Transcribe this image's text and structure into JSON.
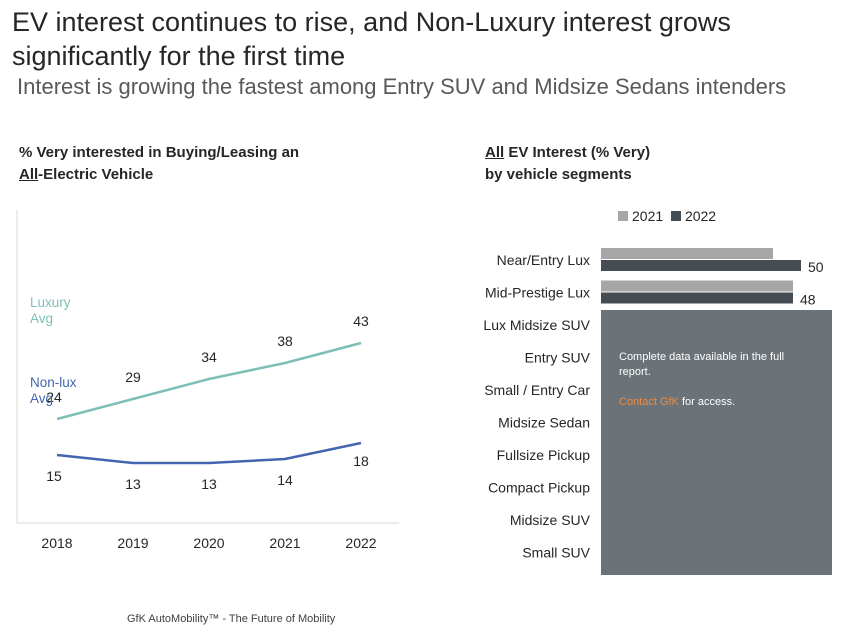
{
  "slide": {
    "title": "EV interest continues to rise, and Non-Luxury interest grows significantly for the first time",
    "subtitle": "Interest is growing the fastest among Entry SUV and Midsize Sedans intenders",
    "footer": "GfK AutoMobility™ - The Future of Mobility"
  },
  "left_panel": {
    "heading_line1": "% Very interested in Buying/Leasing an",
    "heading_line2_underlined": "All",
    "heading_line2_rest": "-Electric Vehicle"
  },
  "right_panel": {
    "heading_line1_underlined": "All",
    "heading_line1_rest": " EV Interest (% Very)",
    "heading_line2": "by vehicle segments",
    "legend": {
      "label_2021": "2021",
      "label_2022": "2022"
    }
  },
  "overlay": {
    "text": "Complete data available in the full report.",
    "contact_link": "Contact GfK",
    "contact_rest": " for access."
  },
  "colors": {
    "luxury": "#7dbfb7",
    "nonlux": "#4365b0",
    "bar_2021": "#a6a6a6",
    "bar_2022": "#464c53",
    "overlay": "#6b7378",
    "accent": "#f4893b"
  },
  "chart_data": [
    {
      "type": "line",
      "categories": [
        "2018",
        "2019",
        "2020",
        "2021",
        "2022"
      ],
      "series": [
        {
          "name": "Luxury Avg",
          "values": [
            24,
            29,
            34,
            38,
            43
          ]
        },
        {
          "name": "Non-lux Avg",
          "values": [
            15,
            13,
            13,
            14,
            18
          ]
        }
      ],
      "series_label_lines": [
        [
          "Luxury",
          "Avg"
        ],
        [
          "Non-lux",
          "Avg"
        ]
      ],
      "ylim": [
        0,
        50
      ],
      "grid": false
    },
    {
      "type": "bar",
      "orientation": "horizontal",
      "categories": [
        "Near/Entry Lux",
        "Mid-Prestige Lux",
        "Lux Midsize SUV",
        "Entry SUV",
        "Small / Entry Car",
        "Midsize Sedan",
        "Fullsize Pickup",
        "Compact Pickup",
        "Midsize SUV",
        "Small SUV"
      ],
      "series": [
        {
          "name": "2021",
          "values": [
            43,
            48,
            null,
            null,
            null,
            null,
            null,
            null,
            null,
            null
          ]
        },
        {
          "name": "2022",
          "values": [
            50,
            48,
            null,
            null,
            null,
            null,
            null,
            null,
            null,
            null
          ]
        }
      ],
      "data_labels": [
        "50",
        "48"
      ],
      "xlim": [
        0,
        55
      ],
      "legend": "top"
    }
  ]
}
